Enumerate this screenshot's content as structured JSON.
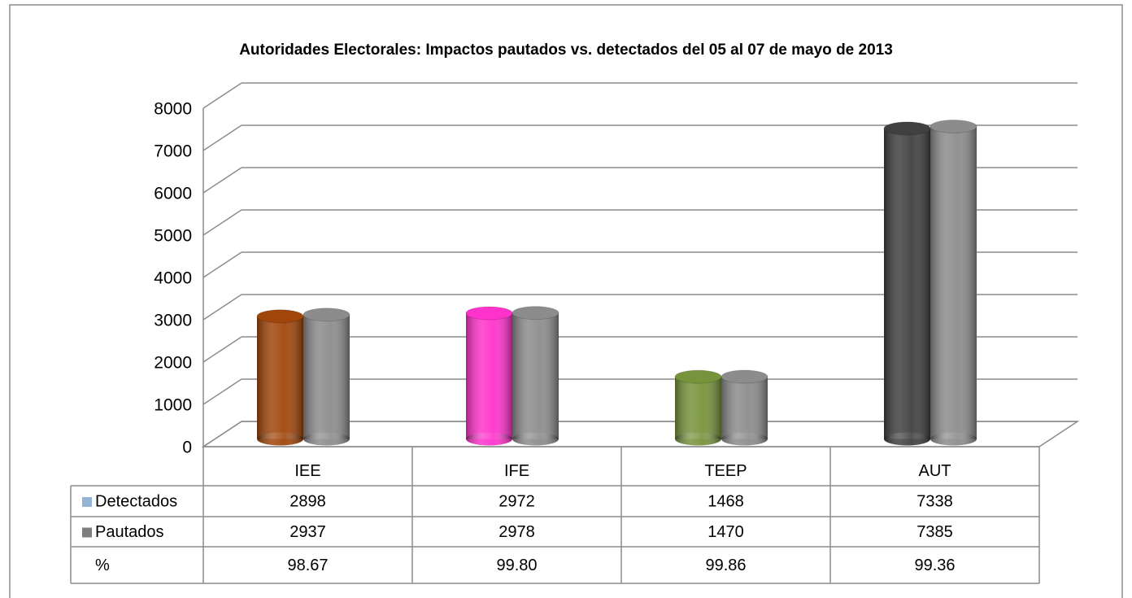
{
  "chart_data": {
    "type": "bar",
    "title": "Autoridades Electorales: Impactos pautados vs. detectados  del 05 al 07 de mayo de 2013",
    "categories": [
      "IEE",
      "IFE",
      "TEEP",
      "AUT"
    ],
    "series": [
      {
        "name": "Detectados",
        "color": "#95b3d7",
        "bar_colors": [
          "#a0460a",
          "#ff33cc",
          "#77933c",
          "#404040"
        ],
        "values": [
          2898,
          2972,
          1468,
          7338
        ]
      },
      {
        "name": "Pautados",
        "color": "#7f7f7f",
        "bar_colors": [
          "#8c8c8c",
          "#8c8c8c",
          "#8c8c8c",
          "#8c8c8c"
        ],
        "values": [
          2937,
          2978,
          1470,
          7385
        ]
      }
    ],
    "extra_row": {
      "name": "%",
      "values": [
        "98.67",
        "99.80",
        "99.86",
        "99.36"
      ]
    },
    "ylim": [
      0,
      8000
    ],
    "yticks": [
      0,
      1000,
      2000,
      3000,
      4000,
      5000,
      6000,
      7000,
      8000
    ],
    "grid": true
  }
}
